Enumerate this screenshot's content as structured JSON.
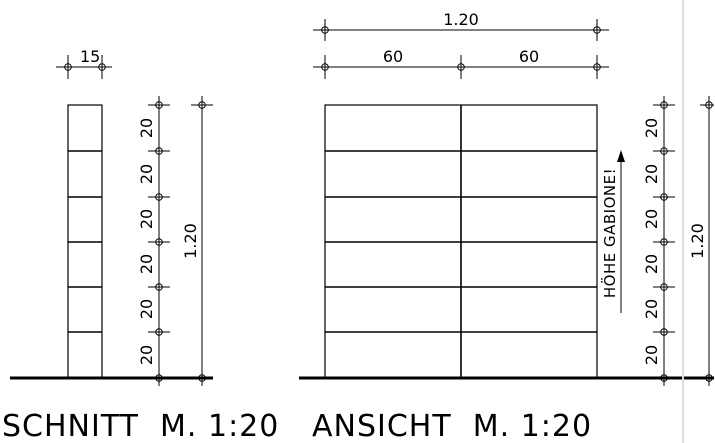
{
  "section": {
    "title": "SCHNITT  M. 1:20",
    "width_label": "15",
    "total_label": "1.20",
    "row_labels": [
      "20",
      "20",
      "20",
      "20",
      "20",
      "20"
    ]
  },
  "elevation": {
    "title": "ANSICHT  M. 1:20",
    "total_width_label": "1.20",
    "half_width_labels": [
      "60",
      "60"
    ],
    "height_note": "HÖHE GABIONE!",
    "total_label": "1.20",
    "row_labels": [
      "20",
      "20",
      "20",
      "20",
      "20",
      "20"
    ]
  }
}
